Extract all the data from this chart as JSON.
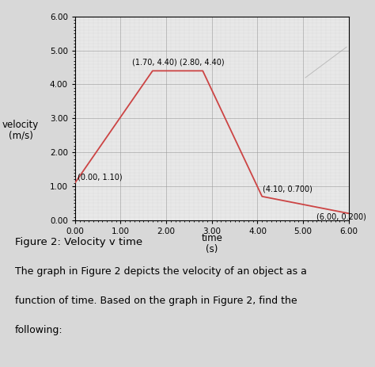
{
  "main_x": [
    0.0,
    1.7,
    2.8,
    4.1,
    6.0
  ],
  "main_y": [
    1.1,
    4.4,
    4.4,
    0.7,
    0.2
  ],
  "line_color": "#cc4444",
  "faint_line_x": [
    5.05,
    5.95
  ],
  "faint_line_y": [
    4.2,
    5.1
  ],
  "xlabel_line1": "time",
  "xlabel_line2": "(s)",
  "ylabel_line1": "velocity",
  "ylabel_line2": "(m/s)",
  "xlim": [
    0.0,
    6.0
  ],
  "ylim": [
    0.0,
    6.0
  ],
  "xticks": [
    0.0,
    1.0,
    2.0,
    3.0,
    4.0,
    5.0,
    6.0
  ],
  "yticks": [
    0.0,
    1.0,
    2.0,
    3.0,
    4.0,
    5.0,
    6.0
  ],
  "title": "Figure 2: Velocity v time",
  "caption_line1": "The graph in Figure 2 depicts the velocity of an object as a",
  "caption_line2": "function of time. Based on the graph in Figure 2, find the",
  "caption_line3": "following:",
  "plot_bg_color": "#e8e8e8",
  "fig_bg_color": "#d8d8d8",
  "grid_major_color": "#999999",
  "grid_minor_color": "#bbbbbb",
  "ann_fontsize": 7.0,
  "axis_label_fontsize": 8.5,
  "tick_fontsize": 7.5,
  "title_fontsize": 9.5,
  "caption_fontsize": 9.0
}
